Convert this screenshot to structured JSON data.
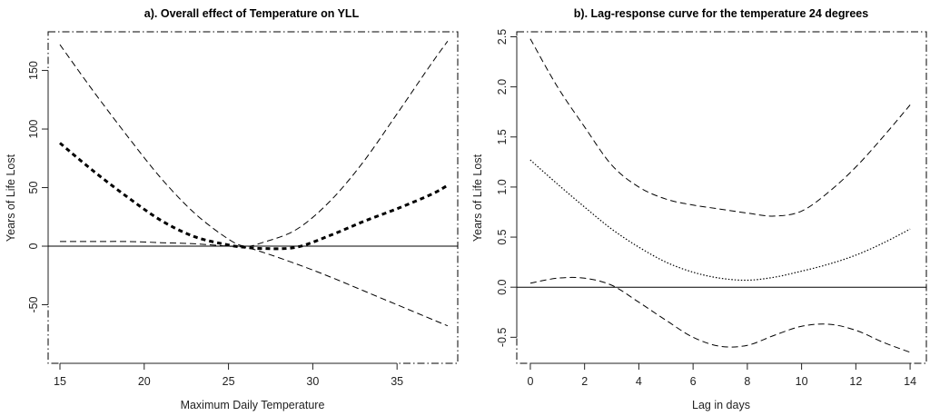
{
  "chart_data": [
    {
      "type": "line",
      "title": "a). Overall effect of Temperature on YLL",
      "xlabel": "Maximum Daily Temperature",
      "ylabel": "Years of Life Lost",
      "xlim": [
        14.3,
        38.6
      ],
      "ylim": [
        -100,
        183
      ],
      "xticks": [
        15,
        20,
        25,
        30,
        35
      ],
      "yticks": [
        -50,
        0,
        50,
        100,
        150
      ],
      "grid": false,
      "reference_line": 0,
      "x": [
        15,
        17,
        19,
        21,
        23,
        25,
        26,
        27,
        29,
        31,
        33,
        35,
        37,
        38
      ],
      "series": [
        {
          "role": "upper",
          "style": "dashed",
          "values": [
            172,
            132,
            94,
            58,
            28,
            6,
            0,
            3,
            14,
            38,
            72,
            113,
            155,
            175
          ]
        },
        {
          "role": "estimate",
          "style": "thick-dashed",
          "values": [
            88,
            64,
            42,
            22,
            8,
            1,
            -1,
            -2,
            -1,
            9,
            21,
            32,
            44,
            52
          ]
        },
        {
          "role": "lower",
          "style": "dashed",
          "values": [
            4,
            4,
            4,
            3,
            2,
            0,
            -1,
            -5,
            -15,
            -26,
            -38,
            -50,
            -62,
            -68
          ]
        }
      ]
    },
    {
      "type": "line",
      "title": "b). Lag-response curve for the temperature 24 degrees",
      "xlabel": "Lag in days",
      "ylabel": "Years of Life Lost",
      "xlim": [
        -0.5,
        14.6
      ],
      "ylim": [
        -0.76,
        2.55
      ],
      "xticks": [
        0,
        2,
        4,
        6,
        8,
        10,
        12,
        14
      ],
      "yticks": [
        -0.5,
        0.0,
        0.5,
        1.0,
        1.5,
        2.0,
        2.5
      ],
      "grid": false,
      "reference_line": 0,
      "x": [
        0,
        1,
        2,
        3,
        4,
        5,
        6,
        7,
        8,
        9,
        10,
        11,
        12,
        13,
        14
      ],
      "series": [
        {
          "role": "upper",
          "style": "dashed",
          "values": [
            2.48,
            2.0,
            1.6,
            1.22,
            1.0,
            0.88,
            0.82,
            0.78,
            0.74,
            0.71,
            0.76,
            0.95,
            1.2,
            1.5,
            1.82
          ]
        },
        {
          "role": "estimate",
          "style": "dotted",
          "values": [
            1.27,
            1.03,
            0.8,
            0.58,
            0.4,
            0.25,
            0.15,
            0.09,
            0.07,
            0.1,
            0.16,
            0.23,
            0.32,
            0.44,
            0.58
          ]
        },
        {
          "role": "lower",
          "style": "dashed",
          "values": [
            0.04,
            0.09,
            0.09,
            0.02,
            -0.15,
            -0.33,
            -0.5,
            -0.59,
            -0.58,
            -0.48,
            -0.39,
            -0.37,
            -0.43,
            -0.55,
            -0.65
          ]
        }
      ]
    }
  ]
}
